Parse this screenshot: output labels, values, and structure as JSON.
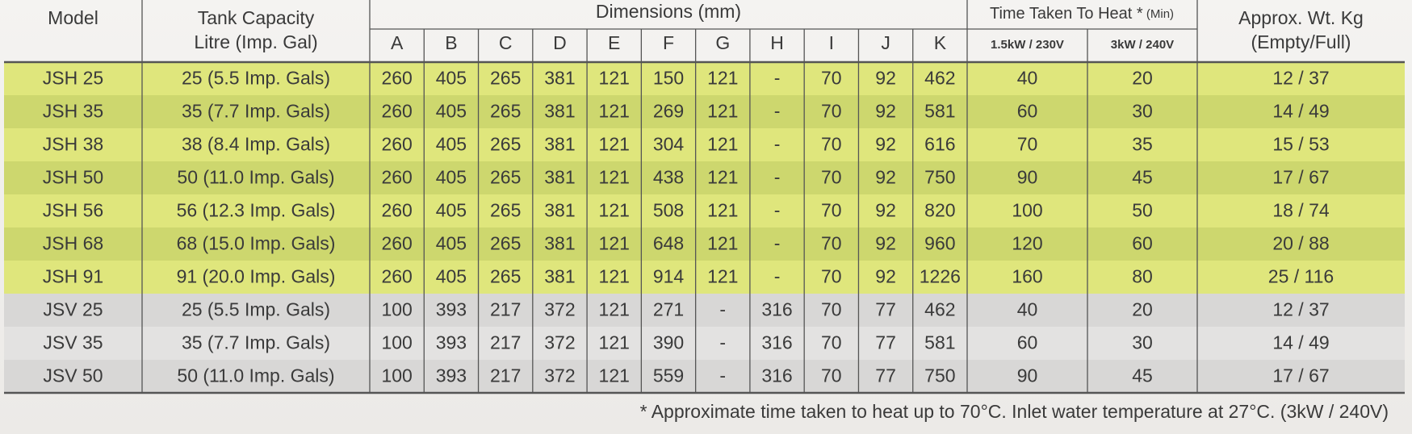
{
  "header": {
    "model": "Model",
    "tank": [
      "Tank Capacity",
      "Litre (Imp. Gal)"
    ],
    "dimensions": "Dimensions (mm)",
    "dimension_columns": [
      "A",
      "B",
      "C",
      "D",
      "E",
      "F",
      "G",
      "H",
      "I",
      "J",
      "K"
    ],
    "time": "Time Taken To Heat *",
    "time_unit": "(Min)",
    "time_columns": [
      "1.5kW / 230V",
      "3kW / 240V"
    ],
    "weight": [
      "Approx. Wt. Kg",
      "(Empty/Full)"
    ]
  },
  "rows": [
    [
      "JSH 25",
      "25 (5.5 Imp. Gals)",
      "260",
      "405",
      "265",
      "381",
      "121",
      "150",
      "121",
      "-",
      "70",
      "92",
      "462",
      "40",
      "20",
      "12 / 37"
    ],
    [
      "JSH 35",
      "35 (7.7 Imp. Gals)",
      "260",
      "405",
      "265",
      "381",
      "121",
      "269",
      "121",
      "-",
      "70",
      "92",
      "581",
      "60",
      "30",
      "14 / 49"
    ],
    [
      "JSH 38",
      "38 (8.4 Imp. Gals)",
      "260",
      "405",
      "265",
      "381",
      "121",
      "304",
      "121",
      "-",
      "70",
      "92",
      "616",
      "70",
      "35",
      "15 / 53"
    ],
    [
      "JSH 50",
      "50 (11.0 Imp. Gals)",
      "260",
      "405",
      "265",
      "381",
      "121",
      "438",
      "121",
      "-",
      "70",
      "92",
      "750",
      "90",
      "45",
      "17 / 67"
    ],
    [
      "JSH 56",
      "56 (12.3 Imp. Gals)",
      "260",
      "405",
      "265",
      "381",
      "121",
      "508",
      "121",
      "-",
      "70",
      "92",
      "820",
      "100",
      "50",
      "18 / 74"
    ],
    [
      "JSH 68",
      "68 (15.0 Imp. Gals)",
      "260",
      "405",
      "265",
      "381",
      "121",
      "648",
      "121",
      "-",
      "70",
      "92",
      "960",
      "120",
      "60",
      "20 / 88"
    ],
    [
      "JSH 91",
      "91 (20.0 Imp. Gals)",
      "260",
      "405",
      "265",
      "381",
      "121",
      "914",
      "121",
      "-",
      "70",
      "92",
      "1226",
      "160",
      "80",
      "25 / 116"
    ],
    [
      "JSV 25",
      "25 (5.5 Imp. Gals)",
      "100",
      "393",
      "217",
      "372",
      "121",
      "271",
      "-",
      "316",
      "70",
      "77",
      "462",
      "40",
      "20",
      "12 / 37"
    ],
    [
      "JSV 35",
      "35 (7.7 Imp. Gals)",
      "100",
      "393",
      "217",
      "372",
      "121",
      "390",
      "-",
      "316",
      "70",
      "77",
      "581",
      "60",
      "30",
      "14 / 49"
    ],
    [
      "JSV 50",
      "50 (11.0 Imp. Gals)",
      "100",
      "393",
      "217",
      "372",
      "121",
      "559",
      "-",
      "316",
      "70",
      "77",
      "750",
      "90",
      "45",
      "17 / 67"
    ]
  ],
  "footnote": "* Approximate time taken to heat up to 70°C. Inlet water temperature at 27°C. (3kW / 240V)"
}
